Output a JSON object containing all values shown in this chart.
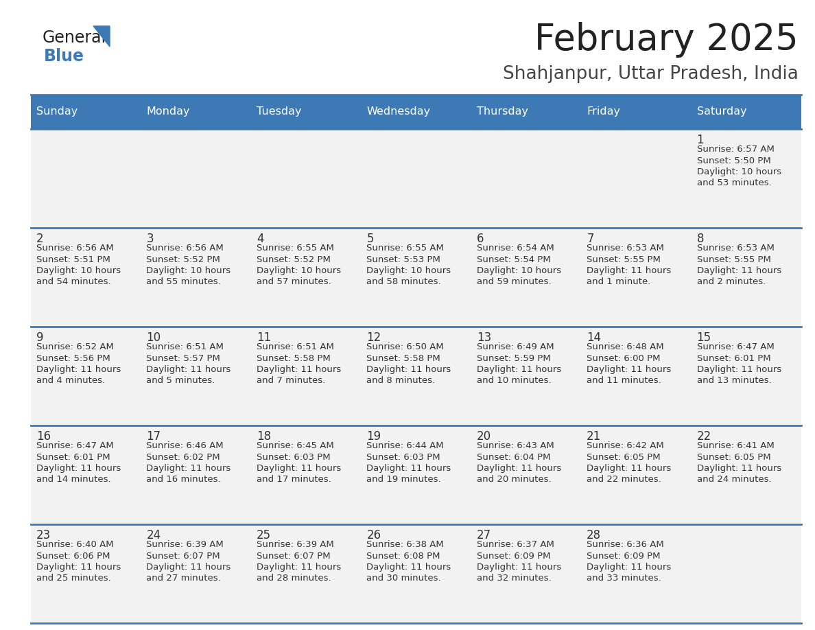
{
  "title": "February 2025",
  "subtitle": "Shahjanpur, Uttar Pradesh, India",
  "header_bg": "#3d7ab5",
  "header_text": "#ffffff",
  "cell_bg": "#f2f2f2",
  "border_color": "#3d7ab5",
  "day_names": [
    "Sunday",
    "Monday",
    "Tuesday",
    "Wednesday",
    "Thursday",
    "Friday",
    "Saturday"
  ],
  "title_color": "#222222",
  "subtitle_color": "#444444",
  "text_color": "#333333",
  "days": [
    {
      "date": 1,
      "col": 6,
      "row": 0,
      "sunrise": "6:57 AM",
      "sunset": "5:50 PM",
      "daylight_h": "10 hours",
      "daylight_m": "and 53 minutes."
    },
    {
      "date": 2,
      "col": 0,
      "row": 1,
      "sunrise": "6:56 AM",
      "sunset": "5:51 PM",
      "daylight_h": "10 hours",
      "daylight_m": "and 54 minutes."
    },
    {
      "date": 3,
      "col": 1,
      "row": 1,
      "sunrise": "6:56 AM",
      "sunset": "5:52 PM",
      "daylight_h": "10 hours",
      "daylight_m": "and 55 minutes."
    },
    {
      "date": 4,
      "col": 2,
      "row": 1,
      "sunrise": "6:55 AM",
      "sunset": "5:52 PM",
      "daylight_h": "10 hours",
      "daylight_m": "and 57 minutes."
    },
    {
      "date": 5,
      "col": 3,
      "row": 1,
      "sunrise": "6:55 AM",
      "sunset": "5:53 PM",
      "daylight_h": "10 hours",
      "daylight_m": "and 58 minutes."
    },
    {
      "date": 6,
      "col": 4,
      "row": 1,
      "sunrise": "6:54 AM",
      "sunset": "5:54 PM",
      "daylight_h": "10 hours",
      "daylight_m": "and 59 minutes."
    },
    {
      "date": 7,
      "col": 5,
      "row": 1,
      "sunrise": "6:53 AM",
      "sunset": "5:55 PM",
      "daylight_h": "11 hours",
      "daylight_m": "and 1 minute."
    },
    {
      "date": 8,
      "col": 6,
      "row": 1,
      "sunrise": "6:53 AM",
      "sunset": "5:55 PM",
      "daylight_h": "11 hours",
      "daylight_m": "and 2 minutes."
    },
    {
      "date": 9,
      "col": 0,
      "row": 2,
      "sunrise": "6:52 AM",
      "sunset": "5:56 PM",
      "daylight_h": "11 hours",
      "daylight_m": "and 4 minutes."
    },
    {
      "date": 10,
      "col": 1,
      "row": 2,
      "sunrise": "6:51 AM",
      "sunset": "5:57 PM",
      "daylight_h": "11 hours",
      "daylight_m": "and 5 minutes."
    },
    {
      "date": 11,
      "col": 2,
      "row": 2,
      "sunrise": "6:51 AM",
      "sunset": "5:58 PM",
      "daylight_h": "11 hours",
      "daylight_m": "and 7 minutes."
    },
    {
      "date": 12,
      "col": 3,
      "row": 2,
      "sunrise": "6:50 AM",
      "sunset": "5:58 PM",
      "daylight_h": "11 hours",
      "daylight_m": "and 8 minutes."
    },
    {
      "date": 13,
      "col": 4,
      "row": 2,
      "sunrise": "6:49 AM",
      "sunset": "5:59 PM",
      "daylight_h": "11 hours",
      "daylight_m": "and 10 minutes."
    },
    {
      "date": 14,
      "col": 5,
      "row": 2,
      "sunrise": "6:48 AM",
      "sunset": "6:00 PM",
      "daylight_h": "11 hours",
      "daylight_m": "and 11 minutes."
    },
    {
      "date": 15,
      "col": 6,
      "row": 2,
      "sunrise": "6:47 AM",
      "sunset": "6:01 PM",
      "daylight_h": "11 hours",
      "daylight_m": "and 13 minutes."
    },
    {
      "date": 16,
      "col": 0,
      "row": 3,
      "sunrise": "6:47 AM",
      "sunset": "6:01 PM",
      "daylight_h": "11 hours",
      "daylight_m": "and 14 minutes."
    },
    {
      "date": 17,
      "col": 1,
      "row": 3,
      "sunrise": "6:46 AM",
      "sunset": "6:02 PM",
      "daylight_h": "11 hours",
      "daylight_m": "and 16 minutes."
    },
    {
      "date": 18,
      "col": 2,
      "row": 3,
      "sunrise": "6:45 AM",
      "sunset": "6:03 PM",
      "daylight_h": "11 hours",
      "daylight_m": "and 17 minutes."
    },
    {
      "date": 19,
      "col": 3,
      "row": 3,
      "sunrise": "6:44 AM",
      "sunset": "6:03 PM",
      "daylight_h": "11 hours",
      "daylight_m": "and 19 minutes."
    },
    {
      "date": 20,
      "col": 4,
      "row": 3,
      "sunrise": "6:43 AM",
      "sunset": "6:04 PM",
      "daylight_h": "11 hours",
      "daylight_m": "and 20 minutes."
    },
    {
      "date": 21,
      "col": 5,
      "row": 3,
      "sunrise": "6:42 AM",
      "sunset": "6:05 PM",
      "daylight_h": "11 hours",
      "daylight_m": "and 22 minutes."
    },
    {
      "date": 22,
      "col": 6,
      "row": 3,
      "sunrise": "6:41 AM",
      "sunset": "6:05 PM",
      "daylight_h": "11 hours",
      "daylight_m": "and 24 minutes."
    },
    {
      "date": 23,
      "col": 0,
      "row": 4,
      "sunrise": "6:40 AM",
      "sunset": "6:06 PM",
      "daylight_h": "11 hours",
      "daylight_m": "and 25 minutes."
    },
    {
      "date": 24,
      "col": 1,
      "row": 4,
      "sunrise": "6:39 AM",
      "sunset": "6:07 PM",
      "daylight_h": "11 hours",
      "daylight_m": "and 27 minutes."
    },
    {
      "date": 25,
      "col": 2,
      "row": 4,
      "sunrise": "6:39 AM",
      "sunset": "6:07 PM",
      "daylight_h": "11 hours",
      "daylight_m": "and 28 minutes."
    },
    {
      "date": 26,
      "col": 3,
      "row": 4,
      "sunrise": "6:38 AM",
      "sunset": "6:08 PM",
      "daylight_h": "11 hours",
      "daylight_m": "and 30 minutes."
    },
    {
      "date": 27,
      "col": 4,
      "row": 4,
      "sunrise": "6:37 AM",
      "sunset": "6:09 PM",
      "daylight_h": "11 hours",
      "daylight_m": "and 32 minutes."
    },
    {
      "date": 28,
      "col": 5,
      "row": 4,
      "sunrise": "6:36 AM",
      "sunset": "6:09 PM",
      "daylight_h": "11 hours",
      "daylight_m": "and 33 minutes."
    }
  ]
}
